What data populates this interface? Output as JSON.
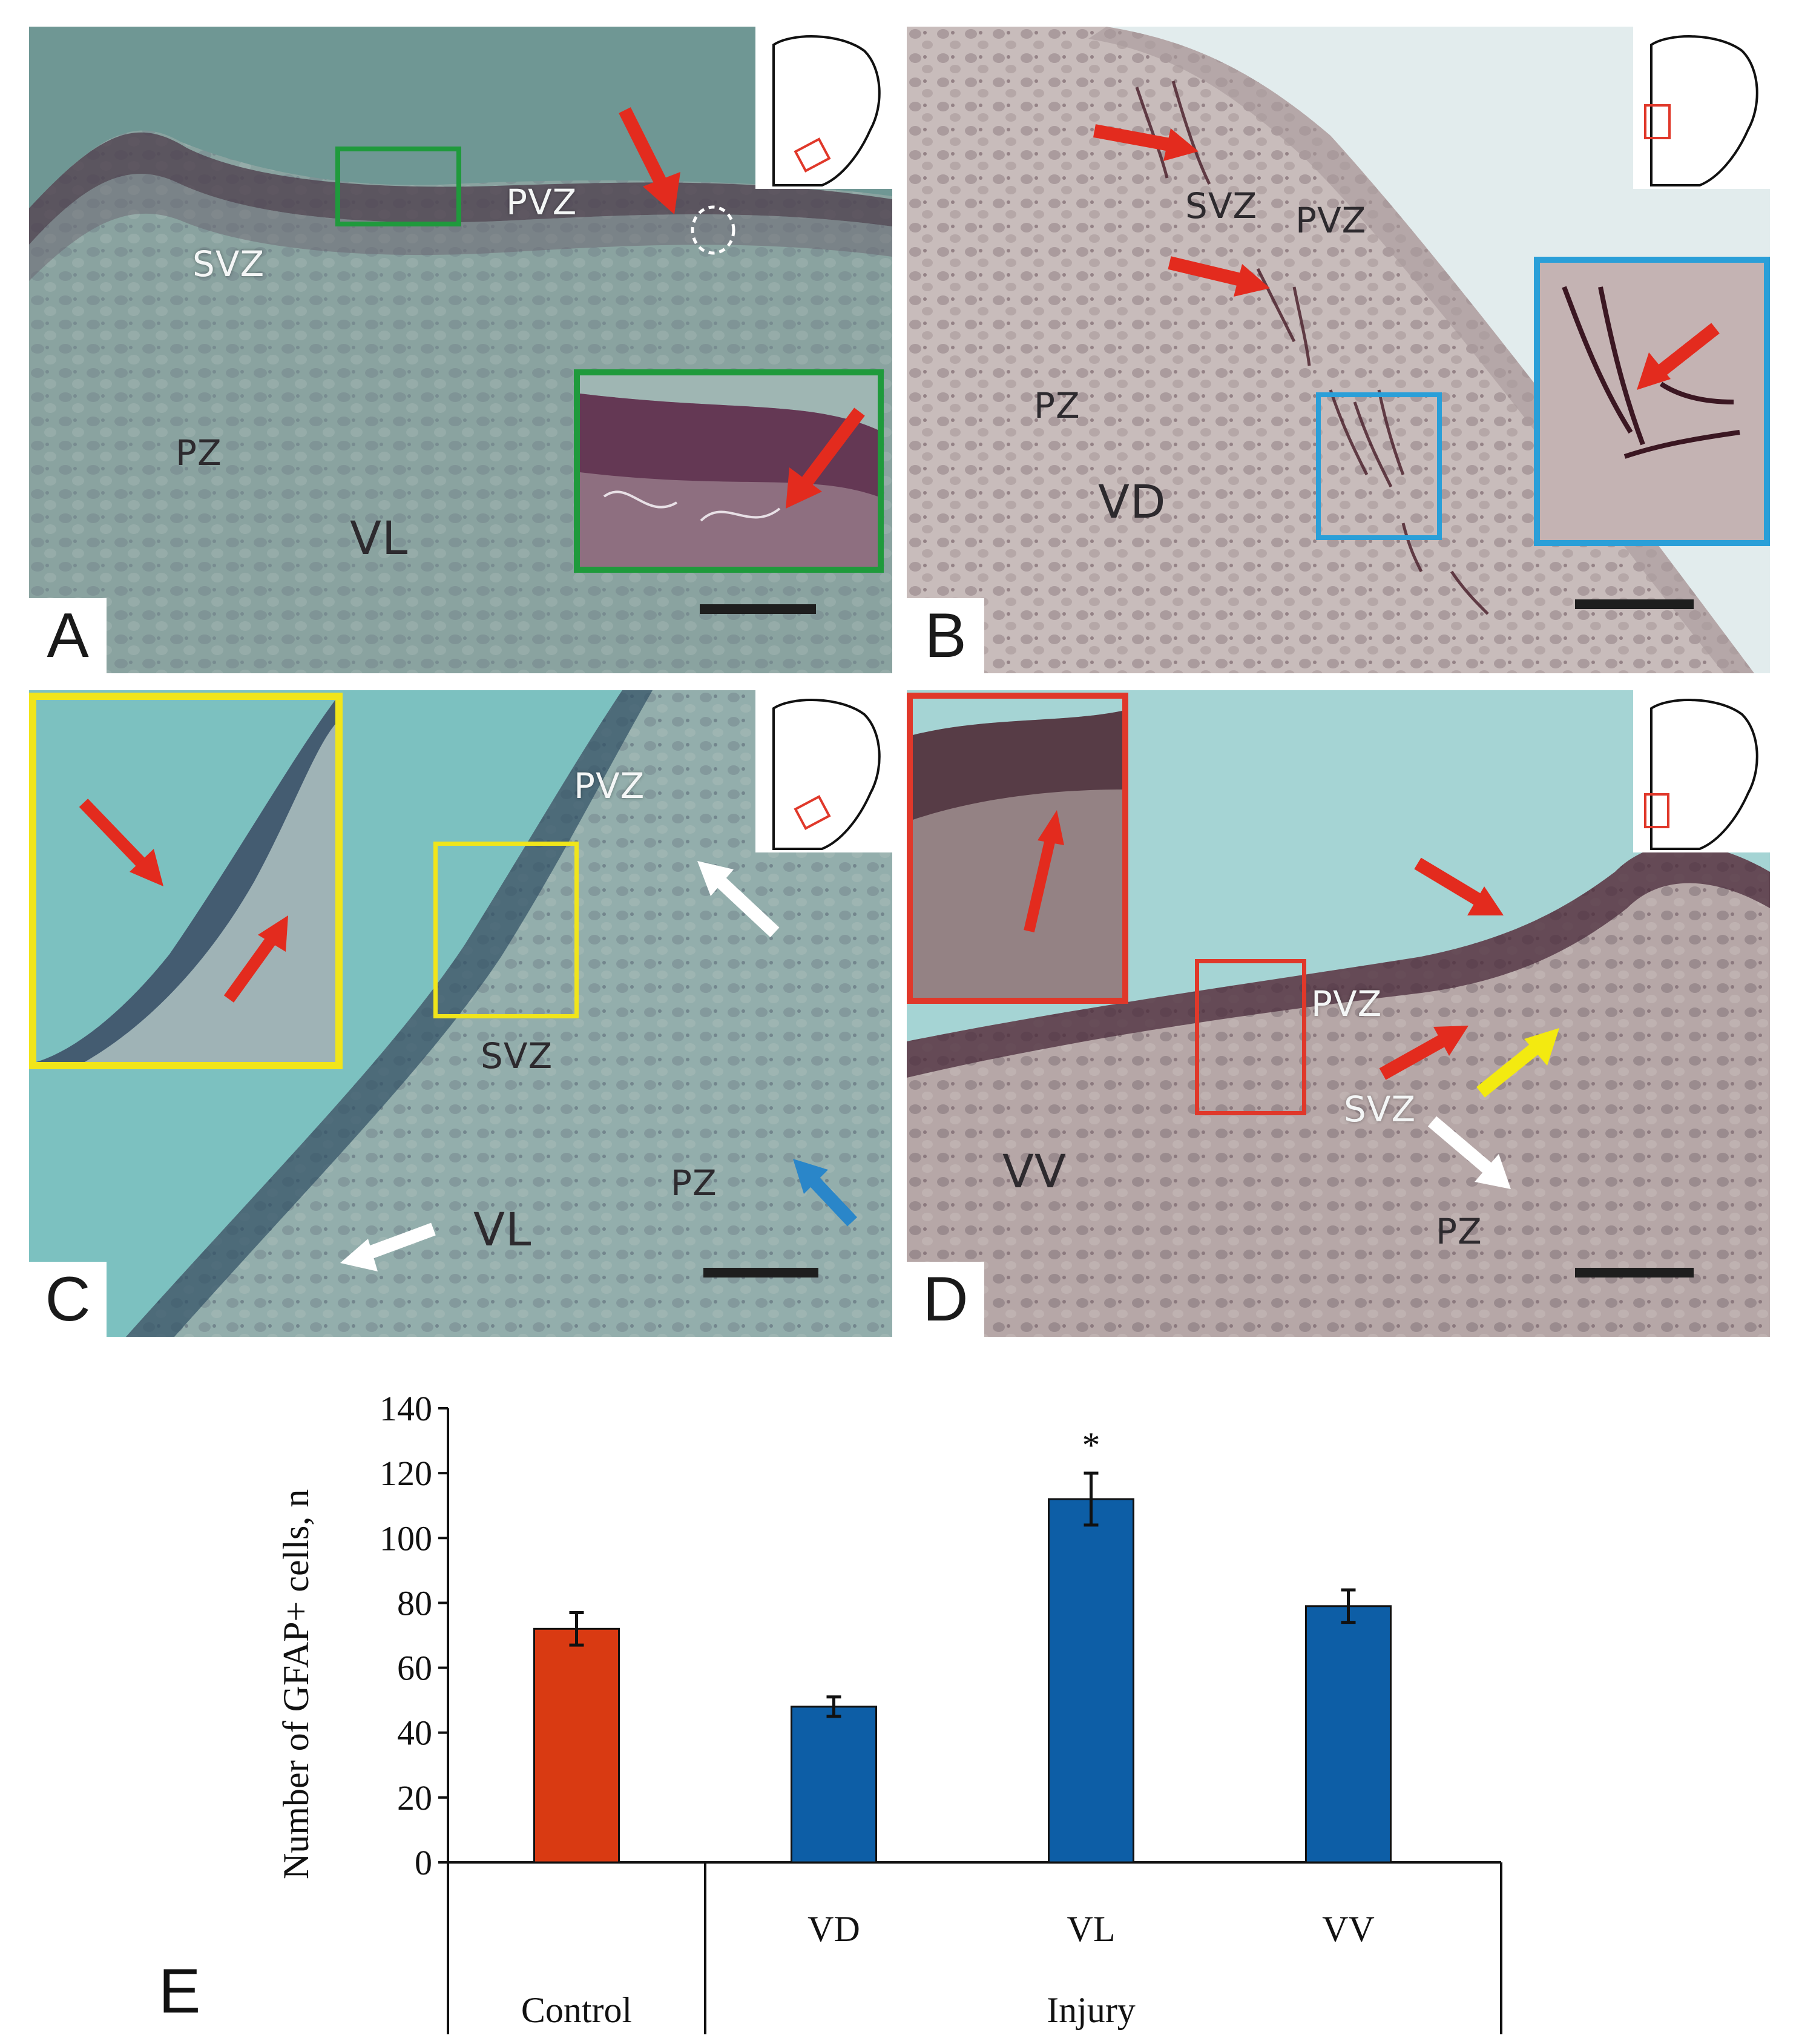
{
  "panels": {
    "A": {
      "letter": "A",
      "zones": {
        "pvz": "PVZ",
        "svz": "SVZ",
        "pz": "PZ",
        "vl": "VL"
      },
      "tint": "#8aa3a0"
    },
    "B": {
      "letter": "B",
      "zones": {
        "svz": "SVZ",
        "pvz": "PVZ",
        "pz": "PZ",
        "vd": "VD"
      },
      "tint": "#c8bcbb"
    },
    "C": {
      "letter": "C",
      "zones": {
        "pvz": "PVZ",
        "svz": "SVZ",
        "vl": "VL",
        "pz": "PZ"
      },
      "tint": "#93aeac"
    },
    "D": {
      "letter": "D",
      "zones": {
        "pvz": "PVZ",
        "svz": "SVZ",
        "vv": "VV",
        "pz": "PZ"
      },
      "tint": "#b6a7a7"
    }
  },
  "colors": {
    "arrow_red": "#e32b1e",
    "arrow_white": "#ffffff",
    "arrow_blue": "#2a86c9",
    "arrow_yellow": "#f3ea10",
    "inset_green": "#1f9a3c",
    "inset_blue": "#2a9fd8",
    "inset_yellow": "#f1e51a",
    "inset_red": "#e0382a",
    "bar_control": "#d93a12",
    "bar_injury": "#0d5ea6"
  },
  "panel_e": {
    "letter": "E",
    "chart_data": {
      "type": "bar",
      "ylabel": "Number of GFAP+ cells, n",
      "ylim": [
        0,
        140
      ],
      "yticks": [
        0,
        20,
        40,
        60,
        80,
        100,
        120,
        140
      ],
      "categories": [
        "",
        "VD",
        "VL",
        "VV"
      ],
      "groups": [
        "Control",
        "Injury"
      ],
      "values": [
        72,
        48,
        112,
        79
      ],
      "errors": [
        5,
        3,
        8,
        5
      ],
      "significance": [
        "",
        "",
        "*",
        ""
      ],
      "bar_colors": [
        "#d93a12",
        "#0d5ea6",
        "#0d5ea6",
        "#0d5ea6"
      ]
    }
  }
}
